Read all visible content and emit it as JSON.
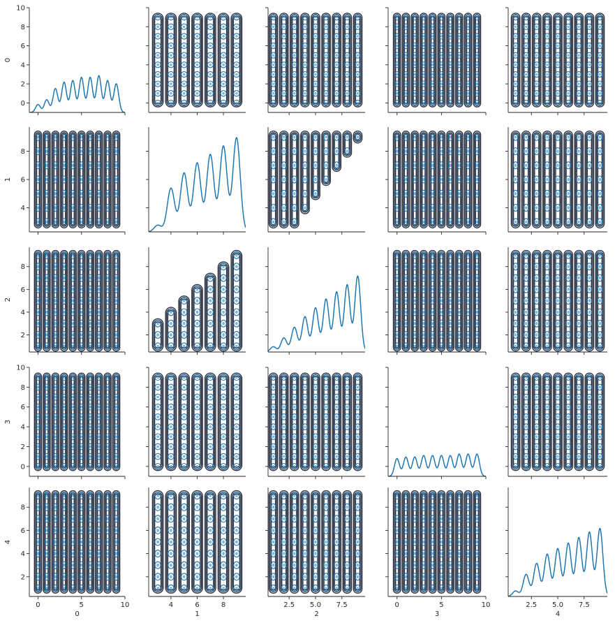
{
  "chart_data": {
    "type": "pairplot",
    "variables": [
      "0",
      "1",
      "2",
      "3",
      "4"
    ],
    "diag_kind": "kde",
    "offdiag_kind": "kde contour",
    "colors": {
      "fill": "#1f77b4",
      "contour_dark": "#2b3140",
      "text": "#262626"
    },
    "axes": {
      "0": {
        "range": [
          -1,
          10
        ],
        "ticks": [
          0,
          2,
          4,
          6,
          8,
          10
        ],
        "x_ticks": [
          0,
          5,
          10
        ],
        "integer_values": [
          0,
          1,
          2,
          3,
          4,
          5,
          6,
          7,
          8,
          9
        ]
      },
      "1": {
        "range": [
          2.3,
          9.7
        ],
        "ticks": [
          4,
          6,
          8
        ],
        "x_ticks": [
          4,
          6,
          8
        ],
        "integer_values": [
          3,
          4,
          5,
          6,
          7,
          8,
          9
        ]
      },
      "2": {
        "range": [
          0.5,
          9.7
        ],
        "ticks": [
          2,
          4,
          6,
          8
        ],
        "x_ticks": [
          2.5,
          5.0,
          7.5
        ],
        "integer_values": [
          1,
          2,
          3,
          4,
          5,
          6,
          7,
          8,
          9
        ]
      },
      "3": {
        "range": [
          -1,
          10
        ],
        "ticks": [
          0,
          2,
          4,
          6,
          8,
          10
        ],
        "x_ticks": [
          0,
          5,
          10
        ],
        "integer_values": [
          0,
          1,
          2,
          3,
          4,
          5,
          6,
          7,
          8,
          9
        ]
      },
      "4": {
        "range": [
          0.3,
          9.7
        ],
        "ticks": [
          2,
          4,
          6,
          8
        ],
        "x_ticks": [
          2.5,
          5.0,
          7.5
        ],
        "integer_values": [
          1,
          2,
          3,
          4,
          5,
          6,
          7,
          8,
          9
        ]
      }
    },
    "x_tick_labels": {
      "0": [
        "0",
        "5",
        "10"
      ],
      "1": [
        "4",
        "6",
        "8"
      ],
      "2": [
        "2.5",
        "5.0",
        "7.5"
      ],
      "3": [
        "0",
        "5",
        "10"
      ],
      "4": [
        "2.5",
        "5.0",
        "7.5"
      ]
    },
    "y_tick_labels": {
      "0": [
        "0",
        "2",
        "4",
        "6",
        "8",
        "10"
      ],
      "1": [
        "4",
        "6",
        "8"
      ],
      "2": [
        "2",
        "4",
        "6",
        "8"
      ],
      "3": [
        "0",
        "2",
        "4",
        "6",
        "8",
        "10"
      ],
      "4": [
        "2",
        "4",
        "6",
        "8"
      ]
    },
    "diagonal_density": {
      "0": {
        "x": [
          0,
          1,
          2,
          3,
          4,
          5,
          6,
          7,
          8,
          9
        ],
        "weights": [
          0.5,
          0.8,
          1.5,
          1.9,
          2.0,
          2.2,
          2.2,
          2.3,
          2.0,
          1.8
        ]
      },
      "1": {
        "x": [
          3,
          4,
          5,
          6,
          7,
          8,
          9
        ],
        "weights": [
          0.4,
          2.6,
          3.5,
          4.1,
          4.6,
          5.1,
          5.6
        ]
      },
      "2": {
        "x": [
          1,
          2,
          3,
          4,
          5,
          6,
          7,
          8,
          9
        ],
        "weights": [
          0.3,
          0.8,
          1.4,
          2.0,
          2.5,
          3.0,
          3.4,
          3.8,
          4.3
        ]
      },
      "3": {
        "x": [
          0,
          1,
          2,
          3,
          4,
          5,
          6,
          7,
          8,
          9
        ],
        "weights": [
          1.2,
          1.3,
          1.3,
          1.4,
          1.4,
          1.4,
          1.4,
          1.5,
          1.5,
          1.5
        ]
      },
      "4": {
        "x": [
          1,
          2,
          3,
          4,
          5,
          6,
          7,
          8,
          9
        ],
        "weights": [
          0.3,
          1.2,
          1.8,
          2.3,
          2.6,
          2.9,
          3.2,
          3.5,
          3.7
        ]
      }
    },
    "joint_constraint": "1 and 2 are dependent: 2 tends to be at or below 1; 4 is at least 1",
    "legend": "none"
  }
}
